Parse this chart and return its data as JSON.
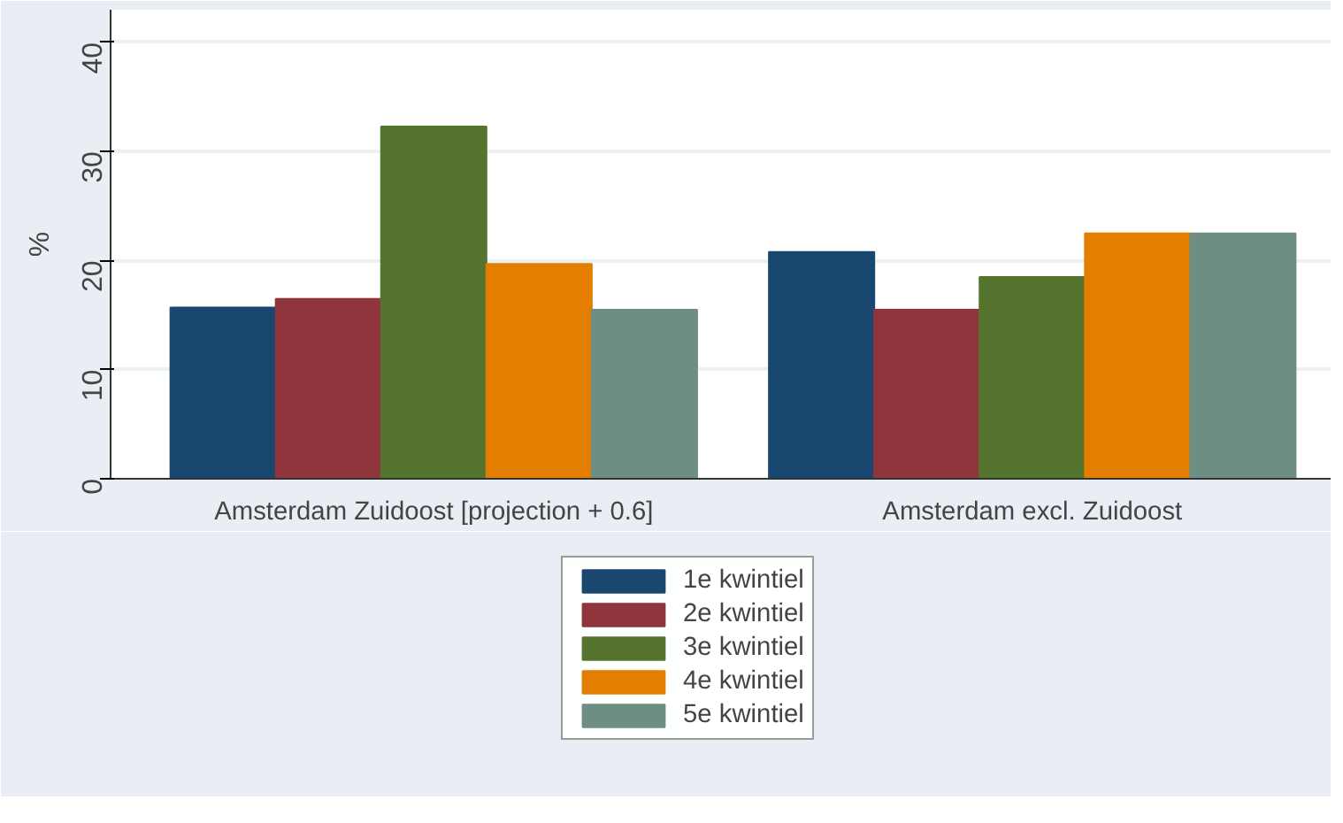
{
  "chart_data": {
    "type": "bar",
    "ylabel": "%",
    "categories": [
      "Amsterdam Zuidoost [projection + 0.6]",
      "Amsterdam excl. Zuidoost"
    ],
    "series": [
      {
        "name": "1e kwintiel",
        "color": "#1a476f",
        "values": [
          15.7,
          20.8
        ]
      },
      {
        "name": "2e kwintiel",
        "color": "#90353b",
        "values": [
          16.5,
          15.5
        ]
      },
      {
        "name": "3e kwintiel",
        "color": "#55752f",
        "values": [
          32.3,
          18.5
        ]
      },
      {
        "name": "4e kwintiel",
        "color": "#e37e00",
        "values": [
          19.7,
          22.5
        ]
      },
      {
        "name": "5e kwintiel",
        "color": "#6e8e84",
        "values": [
          15.5,
          22.5
        ]
      }
    ],
    "ylim": [
      0,
      43
    ],
    "yticks": [
      0,
      10,
      20,
      30,
      40
    ],
    "grid": "y",
    "legend": "bottom"
  }
}
